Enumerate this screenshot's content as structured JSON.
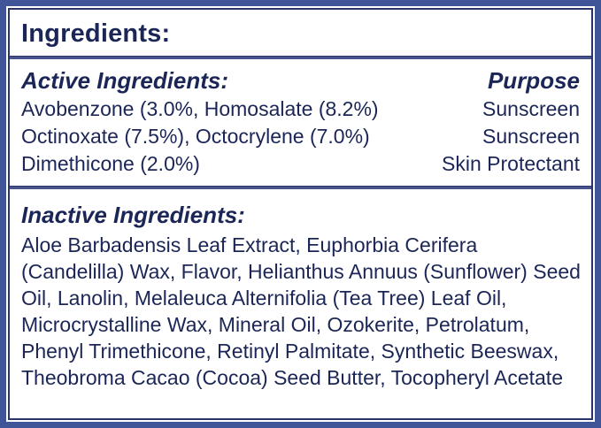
{
  "header": {
    "title": "Ingredients:"
  },
  "active": {
    "title": "Active Ingredients:",
    "purpose_header": "Purpose",
    "rows": [
      {
        "ingredient": "Avobenzone (3.0%, Homosalate (8.2%)",
        "purpose": "Sunscreen"
      },
      {
        "ingredient": "Octinoxate (7.5%), Octocrylene (7.0%)",
        "purpose": "Sunscreen"
      },
      {
        "ingredient": "Dimethicone (2.0%)",
        "purpose": "Skin Protectant"
      }
    ]
  },
  "inactive": {
    "title": "Inactive Ingredients:",
    "text": "Aloe Barbadensis Leaf Extract, Euphorbia Cerifera (Candelilla) Wax, Flavor, Helianthus Annuus (Sunflower) Seed Oil, Lanolin, Melaleuca Alternifolia (Tea Tree) Leaf Oil, Microcrystalline Wax, Mineral Oil, Ozokerite, Petrolatum, Phenyl Trimethicone, Retinyl Palmitate, Synthetic Beeswax, Theobroma Cacao (Cocoa) Seed Butter, Tocopheryl Acetate"
  },
  "colors": {
    "outer_border": "#3F5597",
    "inner_border": "#2B3467",
    "divider": "#47548D",
    "text": "#1B2657",
    "background": "#FFFFFF"
  }
}
